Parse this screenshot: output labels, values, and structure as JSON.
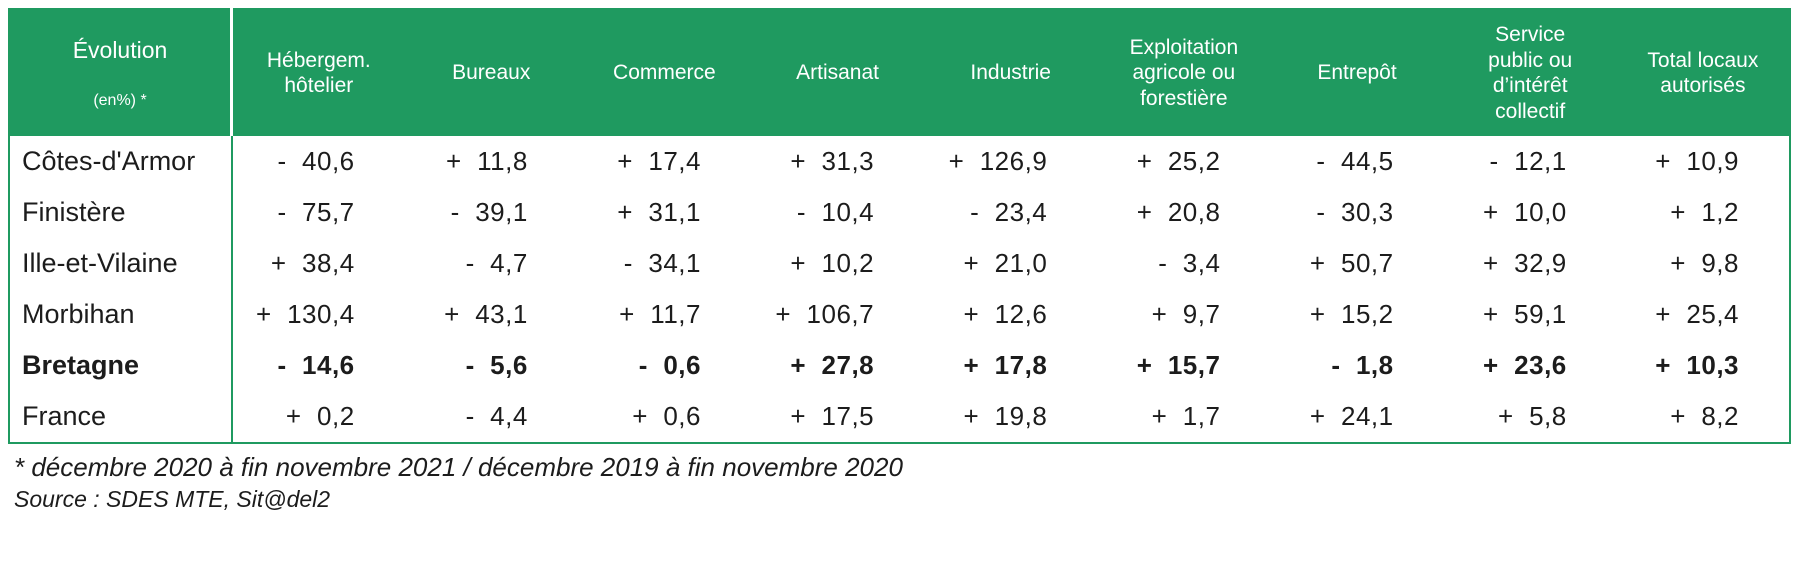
{
  "colors": {
    "header_bg": "#1f9a60",
    "border": "#1f9a60",
    "header_text": "#ffffff",
    "body_text": "#1c1c1c"
  },
  "table": {
    "corner_title": "Évolution",
    "corner_subtitle": "(en%) *",
    "columns": [
      "Hébergem.\nhôtelier",
      "Bureaux",
      "Commerce",
      "Artisanat",
      "Industrie",
      "Exploitation\nagricole ou\nforestière",
      "Entrepôt",
      "Service\npublic ou\nd’intérêt\ncollectif",
      "Total locaux\nautorisés"
    ],
    "rows": [
      {
        "label": "Côtes-d'Armor",
        "bold": false,
        "values": [
          "-  40,6",
          "+  11,8",
          "+  17,4",
          "+  31,3",
          "+  126,9",
          "+  25,2",
          "-  44,5",
          "-  12,1",
          "+  10,9"
        ]
      },
      {
        "label": "Finistère",
        "bold": false,
        "values": [
          "-  75,7",
          "-  39,1",
          "+  31,1",
          "-  10,4",
          "-  23,4",
          "+  20,8",
          "-  30,3",
          "+  10,0",
          "+  1,2"
        ]
      },
      {
        "label": "Ille-et-Vilaine",
        "bold": false,
        "values": [
          "+  38,4",
          "-  4,7",
          "-  34,1",
          "+  10,2",
          "+  21,0",
          "-  3,4",
          "+  50,7",
          "+  32,9",
          "+  9,8"
        ]
      },
      {
        "label": "Morbihan",
        "bold": false,
        "values": [
          "+  130,4",
          "+  43,1",
          "+  11,7",
          "+  106,7",
          "+  12,6",
          "+  9,7",
          "+  15,2",
          "+  59,1",
          "+  25,4"
        ]
      },
      {
        "label": "Bretagne",
        "bold": true,
        "values": [
          "-  14,6",
          "-  5,6",
          "-  0,6",
          "+  27,8",
          "+  17,8",
          "+  15,7",
          "-  1,8",
          "+  23,6",
          "+  10,3"
        ]
      },
      {
        "label": "France",
        "bold": false,
        "values": [
          "+  0,2",
          "-  4,4",
          "+  0,6",
          "+  17,5",
          "+  19,8",
          "+  1,7",
          "+  24,1",
          "+  5,8",
          "+  8,2"
        ]
      }
    ]
  },
  "footnote": "* décembre 2020 à fin novembre 2021 / décembre 2019 à fin novembre 2020",
  "source": "Source : SDES MTE, Sit@del2",
  "chart_data": {
    "type": "table",
    "title": "Évolution (en%) *",
    "columns": [
      "Hébergem. hôtelier",
      "Bureaux",
      "Commerce",
      "Artisanat",
      "Industrie",
      "Exploitation agricole ou forestière",
      "Entrepôt",
      "Service public ou d’intérêt collectif",
      "Total locaux autorisés"
    ],
    "rows": [
      {
        "label": "Côtes-d'Armor",
        "values": [
          -40.6,
          11.8,
          17.4,
          31.3,
          126.9,
          25.2,
          -44.5,
          -12.1,
          10.9
        ]
      },
      {
        "label": "Finistère",
        "values": [
          -75.7,
          -39.1,
          31.1,
          -10.4,
          -23.4,
          20.8,
          -30.3,
          10.0,
          1.2
        ]
      },
      {
        "label": "Ille-et-Vilaine",
        "values": [
          38.4,
          -4.7,
          -34.1,
          10.2,
          21.0,
          -3.4,
          50.7,
          32.9,
          9.8
        ]
      },
      {
        "label": "Morbihan",
        "values": [
          130.4,
          43.1,
          11.7,
          106.7,
          12.6,
          9.7,
          15.2,
          59.1,
          25.4
        ]
      },
      {
        "label": "Bretagne",
        "values": [
          -14.6,
          -5.6,
          -0.6,
          27.8,
          17.8,
          15.7,
          -1.8,
          23.6,
          10.3
        ]
      },
      {
        "label": "France",
        "values": [
          0.2,
          -4.4,
          0.6,
          17.5,
          19.8,
          1.7,
          24.1,
          5.8,
          8.2
        ]
      }
    ],
    "footnote": "* décembre 2020 à fin novembre 2021 / décembre 2019 à fin novembre 2020",
    "source": "Source : SDES MTE, Sit@del2"
  }
}
